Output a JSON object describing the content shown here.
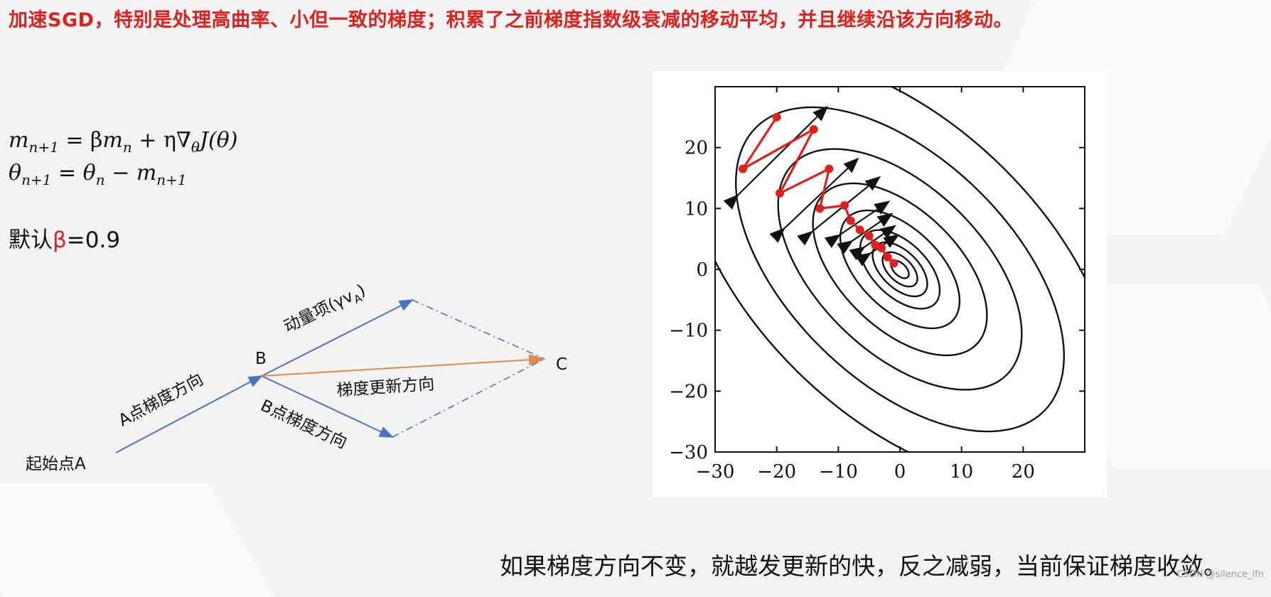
{
  "title": "加速SGD，特别是处理高曲率、小但一致的梯度；积累了之前梯度指数级衰减的移动平均，并且继续沿该方向移动。",
  "formulas": {
    "line1": {
      "lhs": "m",
      "lhs_sub": "n+1",
      "eq": " = β",
      "m1": "m",
      "m1_sub": "n",
      "rest": " + η∇",
      "grad_sub": "θ",
      "tail": "J(θ)"
    },
    "line2": {
      "lhs": "θ",
      "lhs_sub": "n+1",
      "eq": " = ",
      "t1": "θ",
      "t1_sub": "n",
      "minus": " − ",
      "m": "m",
      "m_sub": "n+1"
    }
  },
  "default_beta": {
    "prefix": "默认",
    "symbol": "β",
    "suffix": "=0.9"
  },
  "vector_diagram": {
    "point_a": "起始点A",
    "point_b": "B",
    "point_c": "C",
    "label_a_grad": "A点梯度方向",
    "label_momentum": "动量项(γv",
    "label_momentum_sub": "A",
    "label_momentum_end": ")",
    "label_b_grad": "B点梯度方向",
    "label_update": "梯度更新方向",
    "colors": {
      "blue": "#4a74c4",
      "orange": "#e08a4c"
    }
  },
  "chart_data": {
    "type": "scatter",
    "title": "",
    "xlabel": "",
    "ylabel": "",
    "xlim": [
      -30,
      30
    ],
    "ylim": [
      -30,
      30
    ],
    "xticks": [
      "−30",
      "−20",
      "−10",
      "0",
      "10",
      "20"
    ],
    "yticks": [
      "20",
      "10",
      "0",
      "−10",
      "−20",
      "−30"
    ],
    "contours": "elliptical level sets of a quadratic centered at (0,0), major axis along the y = −x diagonal",
    "series": [
      {
        "color": "#e0201c",
        "x": [
          -20,
          -25.5,
          -14,
          -19.5,
          -11.5,
          -13,
          -9,
          -8,
          -6.5,
          -5,
          -4,
          -3,
          -2,
          -1
        ],
        "y": [
          25,
          16.5,
          23,
          12.5,
          16.5,
          10,
          10.5,
          8,
          6.5,
          5.5,
          4,
          3.5,
          2,
          1
        ]
      }
    ],
    "arrow_colors": {
      "arrows": "#111111",
      "contours": "#111111"
    }
  },
  "bottom_note": "如果梯度方向不变，就越发更新的快，反之减弱，当前保证梯度收敛。",
  "watermark": "CSDN @silence_lfn"
}
